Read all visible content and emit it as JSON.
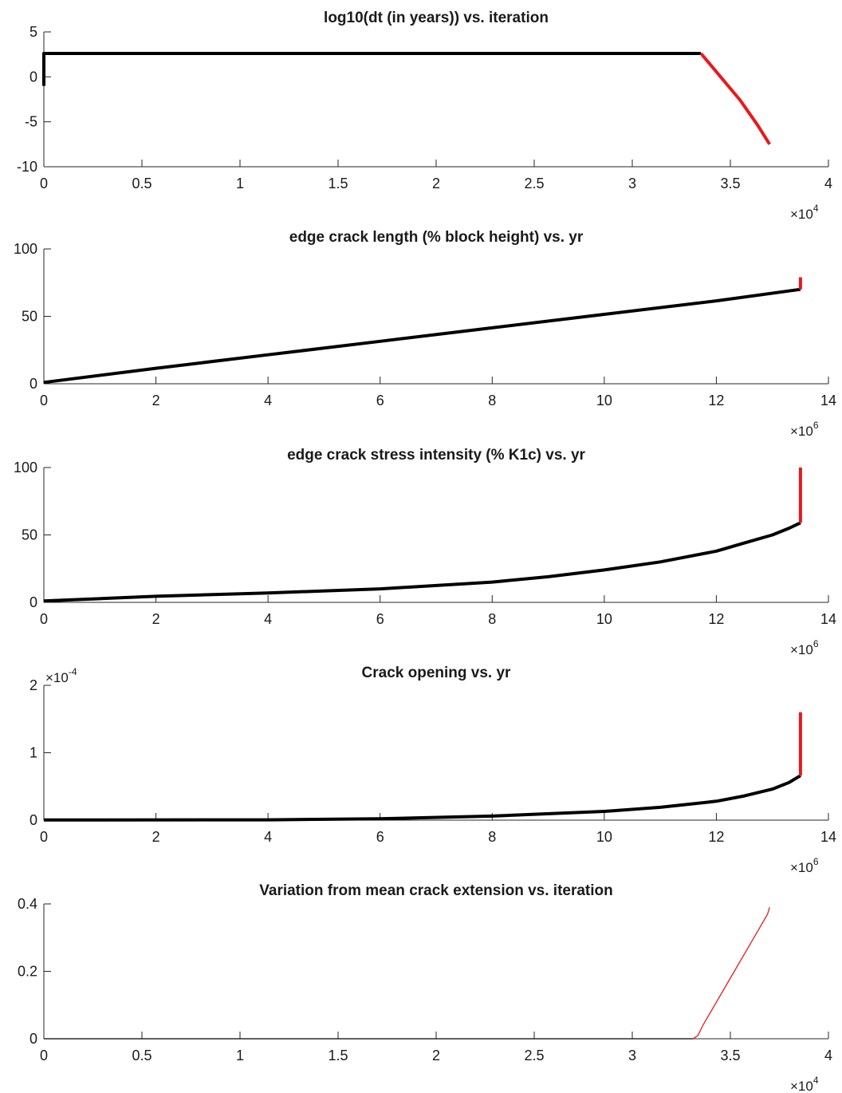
{
  "colors": {
    "pre": "#000000",
    "post": "#e8191b",
    "axis": "#262626"
  },
  "chart_data": [
    {
      "type": "line",
      "title": "log10(dt (in years)) vs. iteration",
      "xlim": [
        0,
        40000
      ],
      "ylim": [
        -10,
        5
      ],
      "xticks": [
        0,
        5000,
        10000,
        15000,
        20000,
        25000,
        30000,
        35000,
        40000
      ],
      "xtick_labels": [
        "0",
        "0.5",
        "1",
        "1.5",
        "2",
        "2.5",
        "3",
        "3.5",
        "4"
      ],
      "yticks": [
        -10,
        -5,
        0,
        5
      ],
      "ytick_labels": [
        "-10",
        "-5",
        "0",
        "5"
      ],
      "x_multiplier": {
        "base": "×10",
        "exp": "4"
      },
      "line_width": 4,
      "series": [
        {
          "color_key": "pre",
          "x": [
            0,
            0,
            30,
            80,
            33500
          ],
          "y": [
            -1,
            2.6,
            2.6,
            2.6,
            2.6
          ]
        },
        {
          "color_key": "post",
          "x": [
            33500,
            34500,
            35500,
            36400,
            37000
          ],
          "y": [
            2.6,
            0,
            -2.6,
            -5.4,
            -7.5
          ]
        }
      ]
    },
    {
      "type": "line",
      "title": "edge crack length (% block height) vs. yr",
      "xlim": [
        0,
        14000000
      ],
      "ylim": [
        0,
        100
      ],
      "xticks": [
        0,
        2000000,
        4000000,
        6000000,
        8000000,
        10000000,
        12000000,
        14000000
      ],
      "xtick_labels": [
        "0",
        "2",
        "4",
        "6",
        "8",
        "10",
        "12",
        "14"
      ],
      "yticks": [
        0,
        50,
        100
      ],
      "ytick_labels": [
        "0",
        "50",
        "100"
      ],
      "x_multiplier": {
        "base": "×10",
        "exp": "6"
      },
      "line_width": 4,
      "series": [
        {
          "color_key": "pre",
          "x": [
            0,
            2000000,
            4000000,
            6000000,
            8000000,
            10000000,
            12000000,
            13500000
          ],
          "y": [
            1,
            11.5,
            21.5,
            31.5,
            41.5,
            51.5,
            61.5,
            70
          ]
        },
        {
          "color_key": "post",
          "x": [
            13500000,
            13500000
          ],
          "y": [
            70,
            79
          ]
        }
      ]
    },
    {
      "type": "line",
      "title": "edge crack stress intensity (% K1c) vs. yr",
      "xlim": [
        0,
        14000000
      ],
      "ylim": [
        0,
        100
      ],
      "xticks": [
        0,
        2000000,
        4000000,
        6000000,
        8000000,
        10000000,
        12000000,
        14000000
      ],
      "xtick_labels": [
        "0",
        "2",
        "4",
        "6",
        "8",
        "10",
        "12",
        "14"
      ],
      "yticks": [
        0,
        50,
        100
      ],
      "ytick_labels": [
        "0",
        "50",
        "100"
      ],
      "x_multiplier": {
        "base": "×10",
        "exp": "6"
      },
      "line_width": 4,
      "series": [
        {
          "color_key": "pre",
          "x": [
            0,
            2000000,
            4000000,
            6000000,
            8000000,
            9000000,
            10000000,
            11000000,
            12000000,
            12500000,
            13000000,
            13300000,
            13500000
          ],
          "y": [
            1,
            4.5,
            7,
            10,
            15,
            19,
            24,
            30,
            38,
            44,
            50,
            55,
            59
          ]
        },
        {
          "color_key": "post",
          "x": [
            13500000,
            13500000
          ],
          "y": [
            59,
            100
          ]
        }
      ]
    },
    {
      "type": "line",
      "title": "Crack opening vs. yr",
      "xlim": [
        0,
        14000000
      ],
      "ylim": [
        0,
        2
      ],
      "xticks": [
        0,
        2000000,
        4000000,
        6000000,
        8000000,
        10000000,
        12000000,
        14000000
      ],
      "xtick_labels": [
        "0",
        "2",
        "4",
        "6",
        "8",
        "10",
        "12",
        "14"
      ],
      "yticks": [
        0,
        1,
        2
      ],
      "ytick_labels": [
        "0",
        "1",
        "2"
      ],
      "x_multiplier": {
        "base": "×10",
        "exp": "6"
      },
      "y_multiplier": {
        "base": "×10",
        "exp": "-4"
      },
      "line_width": 4,
      "series": [
        {
          "color_key": "pre",
          "x": [
            0,
            4000000,
            6000000,
            8000000,
            10000000,
            11000000,
            12000000,
            12500000,
            13000000,
            13300000,
            13500000
          ],
          "y": [
            0.002,
            0.005,
            0.02,
            0.06,
            0.13,
            0.19,
            0.28,
            0.36,
            0.46,
            0.56,
            0.66
          ]
        },
        {
          "color_key": "post",
          "x": [
            13500000,
            13500000
          ],
          "y": [
            0.66,
            1.6
          ]
        }
      ]
    },
    {
      "type": "line",
      "title": "Variation from mean crack extension vs. iteration",
      "xlim": [
        0,
        40000
      ],
      "ylim": [
        0,
        0.4
      ],
      "xticks": [
        0,
        5000,
        10000,
        15000,
        20000,
        25000,
        30000,
        35000,
        40000
      ],
      "xtick_labels": [
        "0",
        "0.5",
        "1",
        "1.5",
        "2",
        "2.5",
        "3",
        "3.5",
        "4"
      ],
      "yticks": [
        0,
        0.2,
        0.4
      ],
      "ytick_labels": [
        "0",
        "0.2",
        "0.4"
      ],
      "x_multiplier": {
        "base": "×10",
        "exp": "4"
      },
      "line_width": 1.3,
      "series": [
        {
          "color_key": "pre",
          "x": [
            0,
            33100
          ],
          "y": [
            0,
            0
          ]
        },
        {
          "color_key": "post",
          "x": [
            33100,
            33350,
            33600,
            34200,
            35000,
            35800,
            36600,
            36900,
            37000
          ],
          "y": [
            0,
            0.01,
            0.04,
            0.1,
            0.18,
            0.26,
            0.34,
            0.37,
            0.39
          ]
        }
      ]
    }
  ]
}
